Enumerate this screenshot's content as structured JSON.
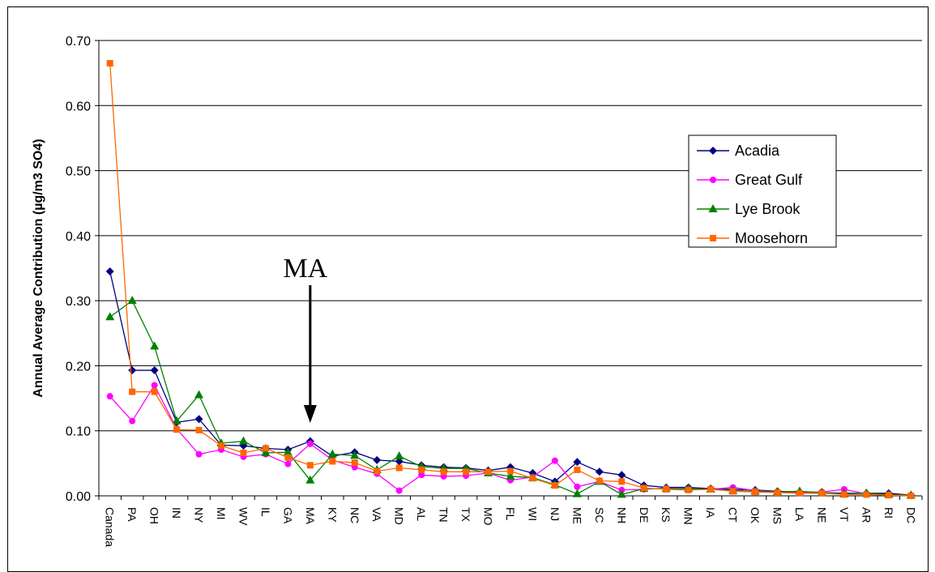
{
  "chart_data": {
    "type": "line",
    "title": "",
    "xlabel": "",
    "ylabel": "Annual Average Contribution (µg/m3 SO4)",
    "ylim": [
      0,
      0.7
    ],
    "yticks": [
      "0.00",
      "0.10",
      "0.20",
      "0.30",
      "0.40",
      "0.50",
      "0.60",
      "0.70"
    ],
    "grid": true,
    "legend_position": "right",
    "categories": [
      "Canada",
      "PA",
      "OH",
      "IN",
      "NY",
      "MI",
      "WV",
      "IL",
      "GA",
      "MA",
      "KY",
      "NC",
      "VA",
      "MD",
      "AL",
      "TN",
      "TX",
      "MO",
      "FL",
      "WI",
      "NJ",
      "ME",
      "SC",
      "NH",
      "DE",
      "KS",
      "MN",
      "IA",
      "CT",
      "OK",
      "MS",
      "LA",
      "NE",
      "VT",
      "AR",
      "RI",
      "DC"
    ],
    "series": [
      {
        "name": "Acadia",
        "color": "#000080",
        "marker": "diamond",
        "values": [
          0.345,
          0.193,
          0.193,
          0.113,
          0.118,
          0.078,
          0.077,
          0.073,
          0.071,
          0.084,
          0.061,
          0.067,
          0.055,
          0.053,
          0.047,
          0.044,
          0.043,
          0.039,
          0.044,
          0.035,
          0.022,
          0.052,
          0.037,
          0.032,
          0.016,
          0.013,
          0.013,
          0.011,
          0.01,
          0.009,
          0.007,
          0.006,
          0.005,
          0.004,
          0.004,
          0.004,
          0.001
        ]
      },
      {
        "name": "Great Gulf",
        "color": "#FF00FF",
        "marker": "circle",
        "values": [
          0.153,
          0.115,
          0.17,
          0.103,
          0.064,
          0.071,
          0.06,
          0.064,
          0.049,
          0.08,
          0.055,
          0.044,
          0.034,
          0.008,
          0.032,
          0.03,
          0.031,
          0.035,
          0.024,
          0.029,
          0.054,
          0.014,
          0.022,
          0.009,
          0.01,
          0.012,
          0.01,
          0.01,
          0.013,
          0.008,
          0.006,
          0.005,
          0.006,
          0.01,
          0.003,
          0.002,
          0.001
        ]
      },
      {
        "name": "Lye Brook",
        "color": "#008000",
        "marker": "triangle",
        "values": [
          0.275,
          0.3,
          0.23,
          0.115,
          0.155,
          0.081,
          0.084,
          0.066,
          0.067,
          0.024,
          0.064,
          0.062,
          0.04,
          0.061,
          0.045,
          0.042,
          0.042,
          0.035,
          0.03,
          0.028,
          0.017,
          0.003,
          0.022,
          0.002,
          0.011,
          0.011,
          0.011,
          0.01,
          0.008,
          0.007,
          0.006,
          0.007,
          0.005,
          0.003,
          0.004,
          0.002,
          0.001
        ]
      },
      {
        "name": "Moosehorn",
        "color": "#FF6600",
        "marker": "square",
        "values": [
          0.665,
          0.16,
          0.16,
          0.102,
          0.101,
          0.077,
          0.066,
          0.073,
          0.059,
          0.047,
          0.053,
          0.051,
          0.038,
          0.043,
          0.04,
          0.037,
          0.037,
          0.037,
          0.038,
          0.027,
          0.016,
          0.04,
          0.023,
          0.022,
          0.012,
          0.01,
          0.009,
          0.01,
          0.007,
          0.006,
          0.005,
          0.004,
          0.004,
          0.002,
          0.002,
          0.001,
          0.0
        ]
      }
    ],
    "annotation": {
      "text": "MA",
      "category": "MA"
    }
  }
}
